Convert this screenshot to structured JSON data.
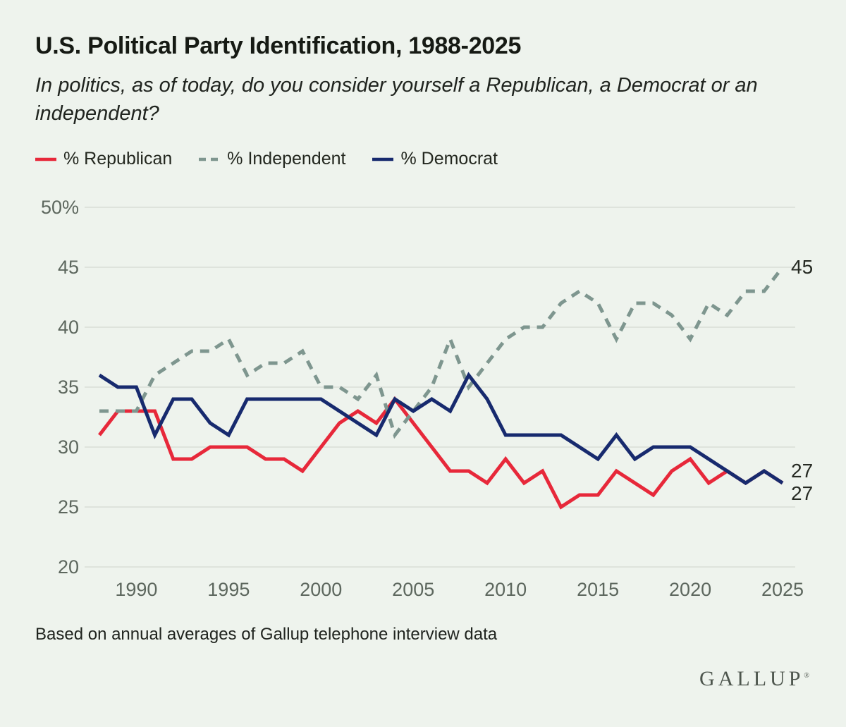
{
  "header": {
    "title": "U.S. Political Party Identification, 1988-2025",
    "subtitle": "In politics, as of today, do you consider yourself a Republican, a Democrat or an independent?"
  },
  "legend": {
    "items": [
      {
        "key": "republican",
        "label": "% Republican",
        "color": "#e7283a",
        "dash": false
      },
      {
        "key": "independent",
        "label": "% Independent",
        "color": "#7e968f",
        "dash": true
      },
      {
        "key": "democrat",
        "label": "% Democrat",
        "color": "#172a6e",
        "dash": false
      }
    ]
  },
  "chart_data": {
    "type": "line",
    "title": "U.S. Political Party Identification, 1988-2025",
    "x": [
      1988,
      1989,
      1990,
      1991,
      1992,
      1993,
      1994,
      1995,
      1996,
      1997,
      1998,
      1999,
      2000,
      2001,
      2002,
      2003,
      2004,
      2005,
      2006,
      2007,
      2008,
      2009,
      2010,
      2011,
      2012,
      2013,
      2014,
      2015,
      2016,
      2017,
      2018,
      2019,
      2020,
      2021,
      2022,
      2023,
      2024,
      2025
    ],
    "series": [
      {
        "name": "% Republican",
        "key": "republican",
        "color": "#e7283a",
        "dash": false,
        "values": [
          31,
          33,
          33,
          33,
          29,
          29,
          30,
          30,
          30,
          29,
          29,
          28,
          30,
          32,
          33,
          32,
          34,
          32,
          30,
          28,
          28,
          27,
          29,
          27,
          28,
          25,
          26,
          26,
          28,
          27,
          26,
          28,
          29,
          27,
          28,
          27,
          28,
          27
        ]
      },
      {
        "name": "% Independent",
        "key": "independent",
        "color": "#7e968f",
        "dash": true,
        "values": [
          33,
          33,
          33,
          36,
          37,
          38,
          38,
          39,
          36,
          37,
          37,
          38,
          35,
          35,
          34,
          36,
          31,
          33,
          35,
          39,
          35,
          37,
          39,
          40,
          40,
          42,
          43,
          42,
          39,
          42,
          42,
          41,
          39,
          42,
          41,
          43,
          43,
          45
        ]
      },
      {
        "name": "% Democrat",
        "key": "democrat",
        "color": "#172a6e",
        "dash": false,
        "values": [
          36,
          35,
          35,
          31,
          34,
          34,
          32,
          31,
          34,
          34,
          34,
          34,
          34,
          33,
          32,
          31,
          34,
          33,
          34,
          33,
          36,
          34,
          31,
          31,
          31,
          31,
          30,
          29,
          31,
          29,
          30,
          30,
          30,
          29,
          28,
          27,
          28,
          27
        ]
      }
    ],
    "ylim": [
      20,
      50
    ],
    "yticks": [
      {
        "value": 50,
        "label": "50%"
      },
      {
        "value": 45,
        "label": "45"
      },
      {
        "value": 40,
        "label": "40"
      },
      {
        "value": 35,
        "label": "35"
      },
      {
        "value": 30,
        "label": "30"
      },
      {
        "value": 25,
        "label": "25"
      },
      {
        "value": 20,
        "label": "20"
      }
    ],
    "xticks": [
      1990,
      1995,
      2000,
      2005,
      2010,
      2015,
      2020,
      2025
    ],
    "grid": true,
    "legend_position": "top",
    "end_labels": [
      {
        "text": "45",
        "series": "independent",
        "value": 45,
        "dy": 0
      },
      {
        "text": "27",
        "series": "democrat",
        "value": 27,
        "dy": -17
      },
      {
        "text": "27",
        "series": "republican",
        "value": 27,
        "dy": 15
      }
    ],
    "colors": {
      "grid": "#d9ded7",
      "background": "#eef3ed"
    }
  },
  "footer": {
    "note": "Based on annual averages of Gallup telephone interview data",
    "logo": "GALLUP",
    "registered_mark": "®"
  }
}
